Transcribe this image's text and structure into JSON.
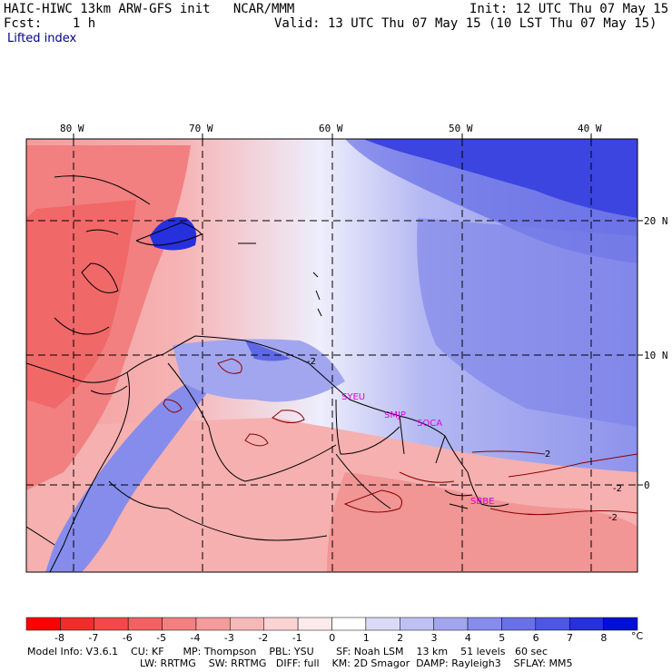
{
  "header": {
    "model_line": "HAIC-HIWC 13km ARW-GFS init   NCAR/MMM",
    "fcst_line": "Fcst:    1 h",
    "init_line": "Init: 12 UTC Thu 07 May 15",
    "valid_line": "Valid: 13 UTC Thu 07 May 15 (10 LST Thu 07 May 15)",
    "field_name": "Lifted index"
  },
  "map": {
    "lon_labels": [
      "80 W",
      "70 W",
      "60 W",
      "50 W",
      "40 W"
    ],
    "lat_labels": [
      "20 N",
      "10 N",
      "0"
    ],
    "station_labels": [
      "SYEU",
      "SMJP",
      "SOCA",
      "SBBE"
    ],
    "station_color": "#e000e0",
    "contour_labels": [
      "-2",
      "2",
      "-2",
      "-2"
    ]
  },
  "colorbar": {
    "ticks": [
      "-8",
      "-7",
      "-6",
      "-5",
      "-4",
      "-3",
      "-2",
      "-1",
      "0",
      "1",
      "2",
      "3",
      "4",
      "5",
      "6",
      "7",
      "8"
    ],
    "unit": "°C",
    "colors": [
      "#ff0000",
      "#f52a2a",
      "#f24848",
      "#f06262",
      "#f28080",
      "#f49b9b",
      "#f7b8b8",
      "#fbd3d3",
      "#fdeaea",
      "#ffffff",
      "#d9dbf7",
      "#bec1f3",
      "#a2a6ef",
      "#868ceb",
      "#6a71e6",
      "#4e57e2",
      "#2630dc",
      "#0010d8"
    ]
  },
  "footer": {
    "line1": "Model Info: V3.6.1    CU: KF      MP: Thompson    PBL: YSU       SF: Noah LSM    13 km    51 levels   60 sec",
    "line2": "LW: RRTMG    SW: RRTMG   DIFF: full    KM: 2D Smagor  DAMP: Rayleigh3    SFLAY: MM5"
  }
}
